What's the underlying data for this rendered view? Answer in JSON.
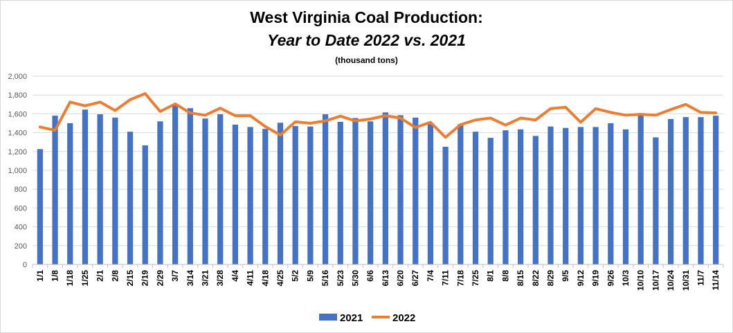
{
  "chart_data": {
    "type": "bar+line",
    "title": "West Virginia Coal Production:",
    "subtitle": "Year to Date 2022 vs. 2021",
    "unit_label": "(thousand tons)",
    "ylim": [
      0,
      2000
    ],
    "ytick_step": 200,
    "grid": true,
    "legend_position": "bottom",
    "categories": [
      "1/1",
      "1/8",
      "1/18",
      "1/25",
      "2/1",
      "2/8",
      "2/15",
      "2/19",
      "2/29",
      "3/7",
      "3/14",
      "3/21",
      "3/28",
      "4/4",
      "4/11",
      "4/18",
      "4/25",
      "5/2",
      "5/9",
      "5/16",
      "5/23",
      "5/30",
      "6/6",
      "6/13",
      "6/20",
      "6/27",
      "7/4",
      "7/11",
      "7/18",
      "7/25",
      "8/1",
      "8/8",
      "8/15",
      "8/22",
      "8/29",
      "9/5",
      "9/12",
      "9/19",
      "9/26",
      "10/3",
      "10/10",
      "10/17",
      "10/24",
      "10/31",
      "11/7",
      "11/14"
    ],
    "series": [
      {
        "name": "2021",
        "type": "bar",
        "color": "#4472c4",
        "values": [
          1225,
          1580,
          1500,
          1645,
          1595,
          1560,
          1410,
          1265,
          1520,
          1690,
          1660,
          1550,
          1595,
          1485,
          1460,
          1440,
          1505,
          1470,
          1465,
          1595,
          1515,
          1555,
          1520,
          1615,
          1585,
          1560,
          1490,
          1250,
          1490,
          1410,
          1345,
          1425,
          1435,
          1365,
          1465,
          1450,
          1460,
          1460,
          1500,
          1435,
          1590,
          1350,
          1545,
          1565,
          1565,
          1580
        ]
      },
      {
        "name": "2022",
        "type": "line",
        "color": "#ed7d31",
        "values": [
          1460,
          1425,
          1725,
          1685,
          1725,
          1635,
          1750,
          1815,
          1625,
          1705,
          1610,
          1585,
          1660,
          1580,
          1580,
          1465,
          1375,
          1515,
          1500,
          1525,
          1575,
          1525,
          1545,
          1580,
          1555,
          1455,
          1510,
          1350,
          1485,
          1535,
          1555,
          1480,
          1555,
          1535,
          1655,
          1670,
          1510,
          1655,
          1615,
          1585,
          1595,
          1585,
          1645,
          1700,
          1615,
          1610
        ]
      }
    ]
  }
}
